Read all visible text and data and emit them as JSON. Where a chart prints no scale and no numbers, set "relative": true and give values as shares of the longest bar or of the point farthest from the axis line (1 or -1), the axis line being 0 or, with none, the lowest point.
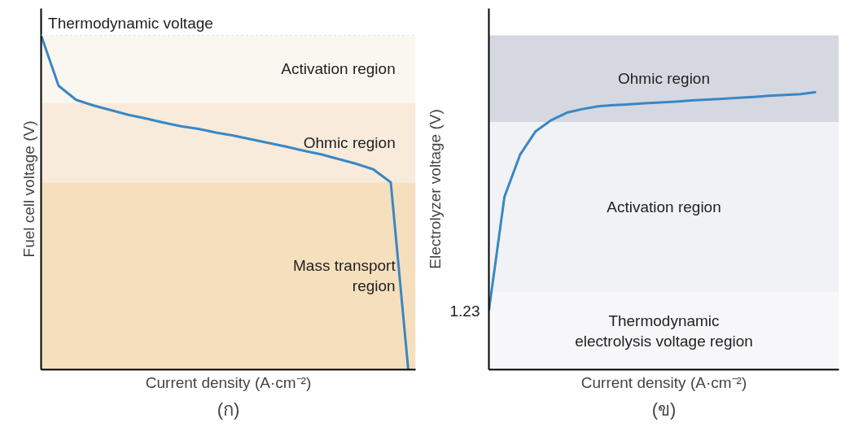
{
  "chart_data": [
    {
      "type": "line",
      "xlabel": "Current density (A·cm⁻²)",
      "ylabel": "Fuel cell voltage (V)",
      "relative": true,
      "categories": [
        null,
        null,
        null,
        null,
        null,
        null,
        null,
        null,
        null,
        null,
        null,
        null,
        null,
        null,
        null,
        null,
        null,
        null,
        null,
        null,
        null,
        null
      ],
      "series": [
        {
          "color": "#3a87c4",
          "values": [
            1.0,
            0.849,
            0.807,
            0.79,
            0.776,
            0.762,
            0.751,
            0.739,
            0.728,
            0.72,
            0.709,
            0.7,
            0.689,
            0.678,
            0.667,
            0.655,
            0.644,
            0.63,
            0.616,
            0.599,
            0.56,
            0.0
          ]
        }
      ],
      "bands": [
        {
          "axis": "y",
          "from": 0.798,
          "to": 1.0,
          "label": "Activation region",
          "color": "#faf6f0"
        },
        {
          "axis": "y",
          "from": 0.56,
          "to": 0.798,
          "label": "Ohmic region",
          "color": "#f8ebdc"
        },
        {
          "axis": "y",
          "from": 0.0,
          "to": 0.56,
          "label": "Mass transport\nregion",
          "color": "#f6dfbd"
        }
      ],
      "ref_lines": [
        {
          "axis": "y",
          "value": 1.0,
          "label": "Thermodynamic voltage",
          "color": "#dddddd",
          "line_style": "dotted"
        }
      ],
      "annotations": [
        "(ก)"
      ]
    },
    {
      "type": "line",
      "xlabel": "Current density (A·cm⁻²)",
      "ylabel": "Electrolyzer voltage (V)",
      "relative": true,
      "categories": [
        null,
        null,
        null,
        null,
        null,
        null,
        null,
        null,
        null,
        null,
        null,
        null,
        null,
        null,
        null,
        null,
        null,
        null,
        null,
        null,
        null,
        null
      ],
      "series": [
        {
          "color": "#3a87c4",
          "values": [
            0.212,
            0.623,
            0.774,
            0.859,
            0.899,
            0.926,
            0.939,
            0.949,
            0.953,
            0.956,
            0.96,
            0.963,
            0.966,
            0.97,
            0.973,
            0.976,
            0.98,
            0.983,
            0.987,
            0.99,
            0.993,
            1.0
          ]
        }
      ],
      "bands": [
        {
          "axis": "y",
          "from": 0.892,
          "to": 1.205,
          "label": "Ohmic region",
          "color": "#d5d8e0"
        },
        {
          "axis": "y",
          "from": 0.279,
          "to": 0.892,
          "label": "Activation region",
          "color": "#f1f2f5"
        },
        {
          "axis": "y",
          "from": 0.0,
          "to": 0.279,
          "label": "Thermodynamic\nelectrolysis voltage region",
          "color": "#f7f7f9"
        }
      ],
      "annotations": [
        "1.23",
        "(ข)"
      ]
    }
  ]
}
